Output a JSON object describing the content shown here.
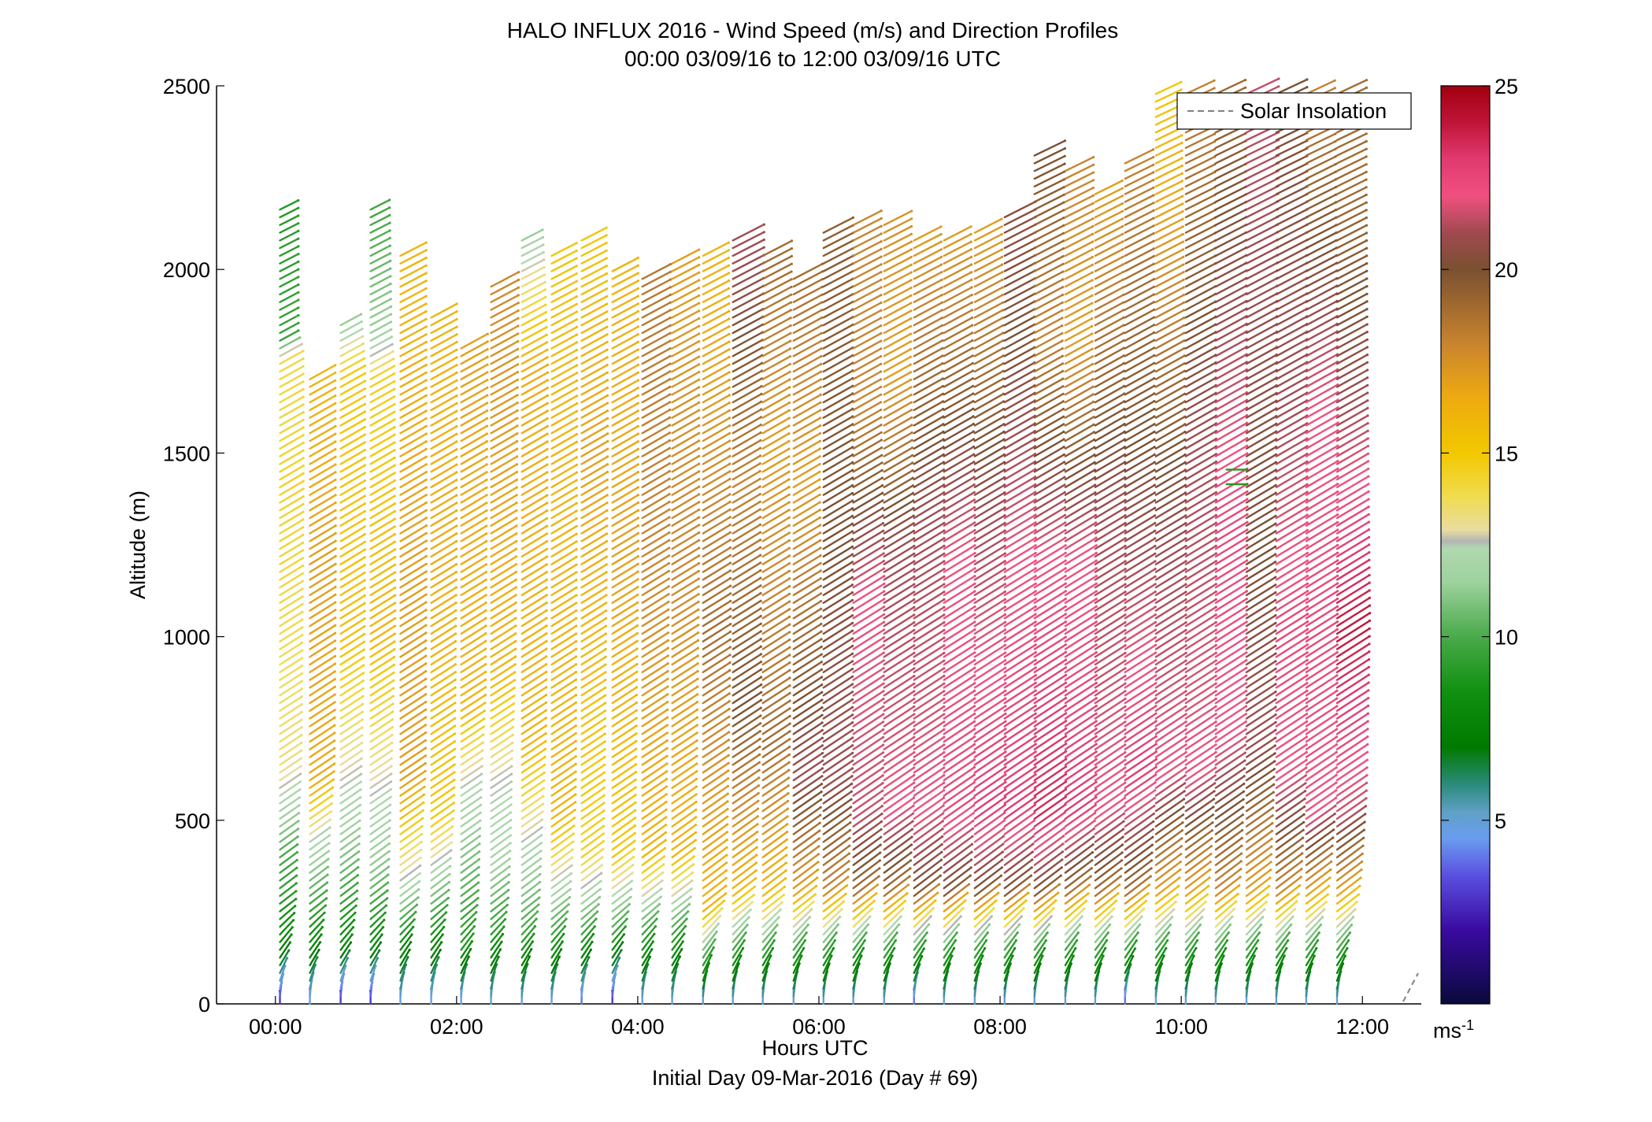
{
  "chart_data": {
    "type": "wind-barb-profile",
    "title": "HALO INFLUX 2016 - Wind Speed (m/s) and Direction Profiles",
    "subtitle": "00:00 03/09/16 to 12:00 03/09/16  UTC",
    "xlabel": "Hours UTC",
    "xlabel_note": "Initial Day 09-Mar-2016 (Day # 69)",
    "ylabel": "Altitude (m)",
    "xlim": [
      -0.65,
      12.65
    ],
    "ylim": [
      0,
      2500
    ],
    "xticks": [
      {
        "value": 0,
        "label": "00:00"
      },
      {
        "value": 2,
        "label": "02:00"
      },
      {
        "value": 4,
        "label": "04:00"
      },
      {
        "value": 6,
        "label": "06:00"
      },
      {
        "value": 8,
        "label": "08:00"
      },
      {
        "value": 10,
        "label": "10:00"
      },
      {
        "value": 12,
        "label": "12:00"
      }
    ],
    "yticks": [
      {
        "value": 0,
        "label": "0"
      },
      {
        "value": 500,
        "label": "500"
      },
      {
        "value": 1000,
        "label": "1000"
      },
      {
        "value": 1500,
        "label": "1500"
      },
      {
        "value": 2000,
        "label": "2000"
      },
      {
        "value": 2500,
        "label": "2500"
      }
    ],
    "legend": {
      "label": "Solar Insolation",
      "placement": "top-right",
      "style": "dashed",
      "color": "#808080"
    },
    "colorbar": {
      "unit": "ms",
      "unit_exp": "-1",
      "range": [
        0,
        25
      ],
      "ticks": [
        {
          "value": 5,
          "label": "5"
        },
        {
          "value": 10,
          "label": "10"
        },
        {
          "value": 15,
          "label": "15"
        },
        {
          "value": 20,
          "label": "20"
        },
        {
          "value": 25,
          "label": "25"
        }
      ],
      "stops": [
        {
          "v": 0,
          "c": "#0a0a3c"
        },
        {
          "v": 2,
          "c": "#3a0aa0"
        },
        {
          "v": 3.5,
          "c": "#5a50e0"
        },
        {
          "v": 4.5,
          "c": "#6a9cf0"
        },
        {
          "v": 5.2,
          "c": "#60a0c8"
        },
        {
          "v": 6,
          "c": "#2a8a78"
        },
        {
          "v": 7,
          "c": "#007a00"
        },
        {
          "v": 8.5,
          "c": "#109010"
        },
        {
          "v": 10,
          "c": "#4aaa4a"
        },
        {
          "v": 11.5,
          "c": "#9ed29e"
        },
        {
          "v": 12.4,
          "c": "#b0d8b0"
        },
        {
          "v": 12.6,
          "c": "#b4b4b4"
        },
        {
          "v": 12.9,
          "c": "#e8dca0"
        },
        {
          "v": 13.8,
          "c": "#f0dc50"
        },
        {
          "v": 15,
          "c": "#f2c800"
        },
        {
          "v": 16.5,
          "c": "#eeaa10"
        },
        {
          "v": 18,
          "c": "#c8842e"
        },
        {
          "v": 20,
          "c": "#7a5030"
        },
        {
          "v": 21,
          "c": "#a04a50"
        },
        {
          "v": 22,
          "c": "#f05080"
        },
        {
          "v": 23,
          "c": "#e03a70"
        },
        {
          "v": 24,
          "c": "#c01438"
        },
        {
          "v": 25,
          "c": "#a00010"
        }
      ]
    },
    "profile_times": [
      0.05,
      0.38,
      0.72,
      1.05,
      1.38,
      1.72,
      2.05,
      2.38,
      2.72,
      3.05,
      3.38,
      3.72,
      4.05,
      4.38,
      4.72,
      5.05,
      5.38,
      5.72,
      6.05,
      6.38,
      6.72,
      7.05,
      7.38,
      7.72,
      8.05,
      8.38,
      8.72,
      9.05,
      9.38,
      9.72,
      10.05,
      10.38,
      10.72,
      11.05,
      11.38,
      11.72
    ],
    "profile_tops": [
      2180,
      1710,
      1850,
      2180,
      2040,
      1880,
      1800,
      1970,
      2080,
      2040,
      2080,
      2010,
      1990,
      2020,
      2040,
      2090,
      2040,
      1980,
      2120,
      2130,
      2130,
      2080,
      2080,
      2110,
      2150,
      2330,
      2270,
      2210,
      2300,
      2500,
      2500,
      2500,
      2500,
      2500,
      2500,
      2500
    ],
    "speed_profiles": [
      [
        [
          0,
          3
        ],
        [
          150,
          8
        ],
        [
          400,
          10
        ],
        [
          550,
          12.2
        ],
        [
          650,
          13.4
        ],
        [
          1400,
          14.5
        ],
        [
          1750,
          14
        ],
        [
          1800,
          9.5
        ],
        [
          2200,
          9
        ]
      ],
      [
        [
          0,
          4.5
        ],
        [
          150,
          8
        ],
        [
          350,
          11
        ],
        [
          450,
          12.6
        ],
        [
          600,
          16.5
        ],
        [
          1200,
          17
        ],
        [
          1700,
          16
        ]
      ],
      [
        [
          0,
          3
        ],
        [
          150,
          8
        ],
        [
          400,
          11
        ],
        [
          600,
          12.6
        ],
        [
          1000,
          15.5
        ],
        [
          1700,
          15
        ],
        [
          1900,
          10
        ]
      ],
      [
        [
          0,
          3
        ],
        [
          150,
          8
        ],
        [
          350,
          11
        ],
        [
          600,
          12.8
        ],
        [
          1000,
          16
        ],
        [
          1700,
          14.5
        ],
        [
          1800,
          11.5
        ],
        [
          2200,
          9.5
        ]
      ],
      [
        [
          0,
          4.8
        ],
        [
          150,
          8
        ],
        [
          300,
          12
        ],
        [
          600,
          17
        ],
        [
          1200,
          17
        ],
        [
          1900,
          16
        ]
      ],
      [
        [
          0,
          4.5
        ],
        [
          150,
          8
        ],
        [
          350,
          12
        ],
        [
          500,
          15
        ],
        [
          1200,
          16.5
        ],
        [
          1900,
          16
        ]
      ],
      [
        [
          0,
          4.5
        ],
        [
          150,
          9
        ],
        [
          400,
          11
        ],
        [
          600,
          12.6
        ],
        [
          800,
          16
        ],
        [
          1800,
          17
        ]
      ],
      [
        [
          0,
          5
        ],
        [
          200,
          9.5
        ],
        [
          400,
          12
        ],
        [
          600,
          12.6
        ],
        [
          900,
          16
        ],
        [
          1800,
          17.5
        ],
        [
          2000,
          18
        ]
      ],
      [
        [
          0,
          5
        ],
        [
          200,
          10
        ],
        [
          400,
          12
        ],
        [
          700,
          16
        ],
        [
          1700,
          16.5
        ],
        [
          1950,
          13.5
        ],
        [
          2100,
          11
        ]
      ],
      [
        [
          0,
          4.8
        ],
        [
          200,
          10
        ],
        [
          500,
          16
        ],
        [
          1600,
          16
        ],
        [
          2100,
          15
        ]
      ],
      [
        [
          0,
          4
        ],
        [
          200,
          10
        ],
        [
          400,
          14.5
        ],
        [
          1500,
          17
        ],
        [
          2100,
          15
        ]
      ],
      [
        [
          0,
          3
        ],
        [
          200,
          10
        ],
        [
          400,
          15
        ],
        [
          1200,
          17
        ],
        [
          2000,
          16
        ]
      ],
      [
        [
          0,
          4.8
        ],
        [
          200,
          10
        ],
        [
          400,
          16
        ],
        [
          1200,
          18
        ],
        [
          2000,
          18.5
        ]
      ],
      [
        [
          0,
          5
        ],
        [
          200,
          10
        ],
        [
          400,
          16
        ],
        [
          1200,
          18
        ],
        [
          2000,
          17
        ]
      ],
      [
        [
          0,
          5
        ],
        [
          150,
          11
        ],
        [
          250,
          16
        ],
        [
          1000,
          19
        ],
        [
          2000,
          16
        ]
      ],
      [
        [
          0,
          5
        ],
        [
          150,
          10
        ],
        [
          300,
          16
        ],
        [
          800,
          20
        ],
        [
          1400,
          18
        ],
        [
          2000,
          21
        ]
      ],
      [
        [
          0,
          5
        ],
        [
          150,
          10
        ],
        [
          300,
          16
        ],
        [
          700,
          19
        ],
        [
          1500,
          17
        ],
        [
          2000,
          19
        ]
      ],
      [
        [
          0,
          5
        ],
        [
          150,
          10
        ],
        [
          300,
          17
        ],
        [
          600,
          21
        ],
        [
          1400,
          17
        ],
        [
          2000,
          19
        ]
      ],
      [
        [
          0,
          5
        ],
        [
          150,
          10
        ],
        [
          300,
          18
        ],
        [
          600,
          21
        ],
        [
          1200,
          20
        ],
        [
          2100,
          19.5
        ]
      ],
      [
        [
          0,
          5
        ],
        [
          150,
          10
        ],
        [
          300,
          19
        ],
        [
          500,
          21.5
        ],
        [
          1100,
          22
        ],
        [
          1600,
          18
        ],
        [
          2100,
          18
        ]
      ],
      [
        [
          0,
          5
        ],
        [
          150,
          10
        ],
        [
          300,
          19
        ],
        [
          500,
          22
        ],
        [
          1200,
          21
        ],
        [
          1700,
          17
        ],
        [
          2100,
          17.5
        ]
      ],
      [
        [
          0,
          4
        ],
        [
          150,
          10
        ],
        [
          300,
          20
        ],
        [
          500,
          22
        ],
        [
          1300,
          21
        ],
        [
          2100,
          17
        ]
      ],
      [
        [
          0,
          5
        ],
        [
          150,
          10
        ],
        [
          300,
          20
        ],
        [
          500,
          22.5
        ],
        [
          1200,
          22
        ],
        [
          2100,
          17
        ]
      ],
      [
        [
          0,
          5
        ],
        [
          150,
          10
        ],
        [
          300,
          20
        ],
        [
          500,
          23
        ],
        [
          1300,
          21
        ],
        [
          2100,
          17
        ]
      ],
      [
        [
          0,
          5
        ],
        [
          150,
          10
        ],
        [
          300,
          20
        ],
        [
          500,
          23
        ],
        [
          1200,
          22
        ],
        [
          1800,
          20
        ],
        [
          2100,
          20.5
        ]
      ],
      [
        [
          0,
          5
        ],
        [
          150,
          10
        ],
        [
          300,
          20
        ],
        [
          500,
          23.5
        ],
        [
          1200,
          22
        ],
        [
          1800,
          18
        ],
        [
          2300,
          20
        ]
      ],
      [
        [
          0,
          5
        ],
        [
          150,
          10
        ],
        [
          300,
          19
        ],
        [
          500,
          23
        ],
        [
          1200,
          22
        ],
        [
          1800,
          17
        ],
        [
          2250,
          18
        ]
      ],
      [
        [
          0,
          5
        ],
        [
          150,
          10
        ],
        [
          300,
          19
        ],
        [
          500,
          22
        ],
        [
          1300,
          21
        ],
        [
          2200,
          17
        ]
      ],
      [
        [
          0,
          4
        ],
        [
          150,
          10
        ],
        [
          300,
          19
        ],
        [
          600,
          23
        ],
        [
          1500,
          20
        ],
        [
          2300,
          18
        ]
      ],
      [
        [
          0,
          5
        ],
        [
          150,
          10
        ],
        [
          300,
          17
        ],
        [
          600,
          22
        ],
        [
          1200,
          21
        ],
        [
          1700,
          19
        ],
        [
          2500,
          15
        ]
      ],
      [
        [
          0,
          5
        ],
        [
          150,
          10
        ],
        [
          300,
          17
        ],
        [
          600,
          22
        ],
        [
          1500,
          21
        ],
        [
          2500,
          18
        ]
      ],
      [
        [
          0,
          5
        ],
        [
          150,
          10
        ],
        [
          300,
          18
        ],
        [
          700,
          22
        ],
        [
          1300,
          22.5
        ],
        [
          2500,
          19
        ]
      ],
      [
        [
          0,
          5
        ],
        [
          150,
          10
        ],
        [
          300,
          17
        ],
        [
          700,
          21
        ],
        [
          1200,
          20
        ],
        [
          2500,
          21.5
        ]
      ],
      [
        [
          0,
          5
        ],
        [
          150,
          10
        ],
        [
          300,
          18
        ],
        [
          600,
          22
        ],
        [
          1000,
          22.5
        ],
        [
          1600,
          21
        ],
        [
          2500,
          20
        ]
      ],
      [
        [
          0,
          5
        ],
        [
          150,
          10
        ],
        [
          300,
          17
        ],
        [
          500,
          22
        ],
        [
          1000,
          22.5
        ],
        [
          1600,
          22
        ],
        [
          2500,
          18
        ]
      ],
      [
        [
          0,
          5
        ],
        [
          150,
          10
        ],
        [
          300,
          17
        ],
        [
          500,
          21.5
        ],
        [
          1000,
          24
        ],
        [
          1600,
          21
        ],
        [
          2200,
          19
        ]
      ]
    ],
    "direction_profile_deg": [
      [
        0,
        180
      ],
      [
        100,
        210
      ],
      [
        250,
        232
      ],
      [
        600,
        236
      ],
      [
        1500,
        240
      ],
      [
        2500,
        245
      ]
    ],
    "isolated_barbs": [
      {
        "x": 10.5,
        "y": 1455,
        "speed": 9,
        "dir_deg": 270
      },
      {
        "x": 10.5,
        "y": 1415,
        "speed": 9,
        "dir_deg": 270
      }
    ]
  }
}
